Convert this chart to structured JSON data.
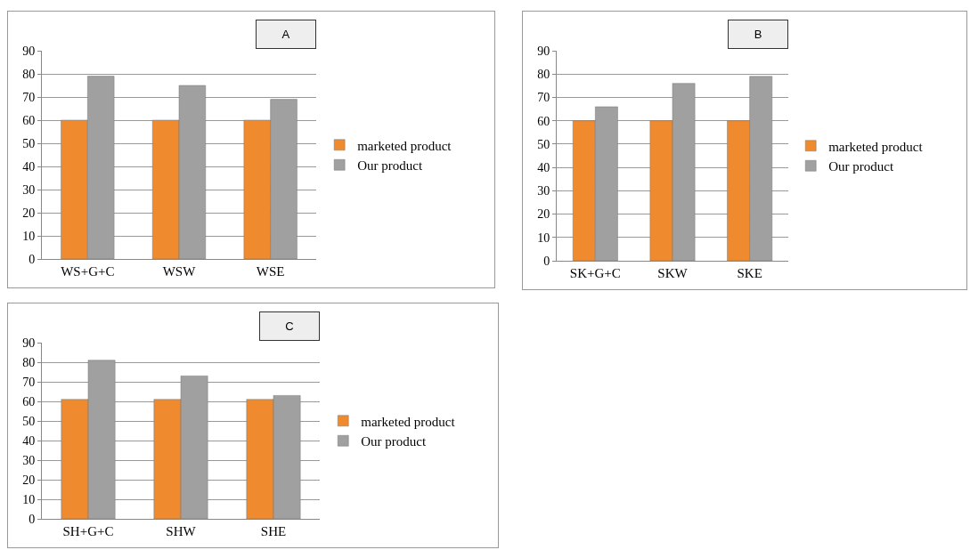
{
  "chart_data": [
    {
      "type": "bar",
      "title": "A",
      "categories": [
        "WS+G+C",
        "WSW",
        "WSE"
      ],
      "series": [
        {
          "name": "marketed product",
          "color": "#f08a2e",
          "values": [
            60,
            60,
            60
          ]
        },
        {
          "name": "Our product",
          "color": "#a0a0a0",
          "values": [
            79,
            75,
            69
          ]
        }
      ],
      "ylim": [
        0,
        90
      ],
      "yticks": [
        0,
        10,
        20,
        30,
        40,
        50,
        60,
        70,
        80,
        90
      ],
      "grid": "y",
      "legend": "right"
    },
    {
      "type": "bar",
      "title": "B",
      "categories": [
        "SK+G+C",
        "SKW",
        "SKE"
      ],
      "series": [
        {
          "name": "marketed product",
          "color": "#f08a2e",
          "values": [
            60,
            60,
            60
          ]
        },
        {
          "name": "Our product",
          "color": "#a0a0a0",
          "values": [
            66,
            76,
            79
          ]
        }
      ],
      "ylim": [
        0,
        90
      ],
      "yticks": [
        0,
        10,
        20,
        30,
        40,
        50,
        60,
        70,
        80,
        90
      ],
      "grid": "y",
      "legend": "right"
    },
    {
      "type": "bar",
      "title": "C",
      "categories": [
        "SH+G+C",
        "SHW",
        "SHE"
      ],
      "series": [
        {
          "name": "marketed product",
          "color": "#f08a2e",
          "values": [
            61,
            61,
            61
          ]
        },
        {
          "name": "Our product",
          "color": "#a0a0a0",
          "values": [
            81,
            73,
            63
          ]
        }
      ],
      "ylim": [
        0,
        90
      ],
      "yticks": [
        0,
        10,
        20,
        30,
        40,
        50,
        60,
        70,
        80,
        90
      ],
      "grid": "y",
      "legend": "right"
    }
  ]
}
